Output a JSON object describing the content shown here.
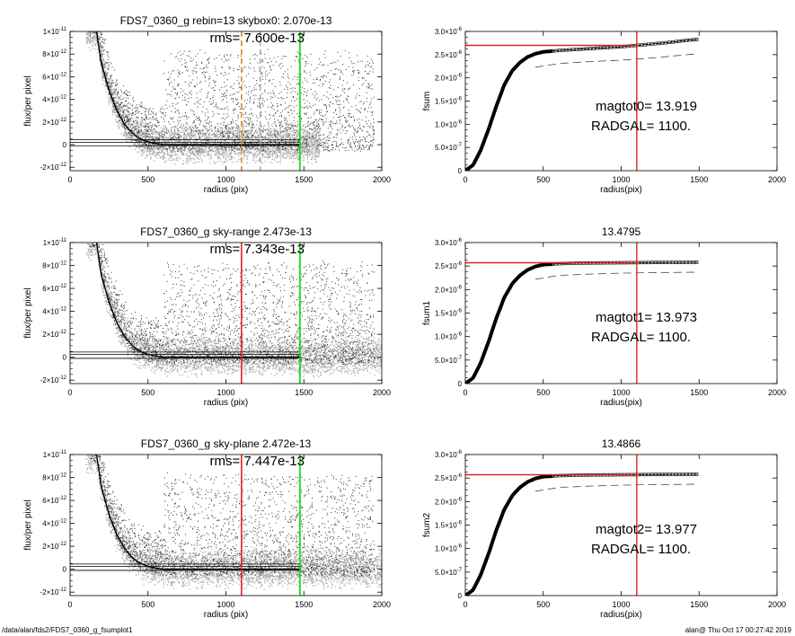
{
  "chart_data": [
    {
      "type": "scatter",
      "title": "FDS7_0360_g rebin=13    skybox0:  2.070e-13",
      "annotations": [
        "rms= 7.600e-13"
      ],
      "xlabel": "radius (pix)",
      "ylabel": "flux/per pixel",
      "xlim": [
        0,
        2000
      ],
      "ylim": [
        -2.3e-12,
        1e-11
      ],
      "xticks": [
        "0",
        "500",
        "1000",
        "1500",
        "2000"
      ],
      "yticks": [
        {
          "base": "1×10",
          "exp": "-11",
          "value": 1e-11
        },
        {
          "base": "8×10",
          "exp": "-12",
          "value": 8e-12
        },
        {
          "base": "6×10",
          "exp": "-12",
          "value": 6e-12
        },
        {
          "base": "4×10",
          "exp": "-12",
          "value": 4e-12
        },
        {
          "base": "2×10",
          "exp": "-12",
          "value": 2e-12
        },
        {
          "base": "0",
          "exp": "",
          "value": 0
        },
        {
          "base": "-2×10",
          "exp": "-12",
          "value": -2e-12
        }
      ],
      "vlines": [
        {
          "x": 1100,
          "color": "#e08a1e",
          "style": "dashed"
        },
        {
          "x": 1220,
          "color": "#aaaaaa",
          "style": "dashed"
        },
        {
          "x": 1475,
          "color": "#00dd00",
          "style": "solid"
        }
      ],
      "hlines": [
        2.07e-13,
        -1e-13,
        4.5e-13
      ],
      "profile": [
        [
          170,
          1e-11
        ],
        [
          200,
          7.2e-12
        ],
        [
          250,
          4.8e-12
        ],
        [
          300,
          3e-12
        ],
        [
          350,
          1.8e-12
        ],
        [
          400,
          1e-12
        ],
        [
          450,
          5e-13
        ],
        [
          500,
          2.5e-13
        ],
        [
          550,
          1e-13
        ],
        [
          600,
          0
        ]
      ],
      "scatter_xmax": 1600,
      "errorbars": true
    },
    {
      "type": "line",
      "title": "",
      "annotations": [
        "magtot0=  13.919",
        "RADGAL=   1100."
      ],
      "xlabel": "radius(pix)",
      "ylabel": "fsum",
      "xlim": [
        0,
        2000
      ],
      "ylim": [
        0,
        3e-06
      ],
      "xticks": [
        "0",
        "500",
        "1000",
        "1500",
        "2000"
      ],
      "yticks": [
        {
          "base": "3.0×10",
          "exp": "-6",
          "value": 3e-06
        },
        {
          "base": "2.5×10",
          "exp": "-6",
          "value": 2.5e-06
        },
        {
          "base": "2.0×10",
          "exp": "-6",
          "value": 2e-06
        },
        {
          "base": "1.5×10",
          "exp": "-6",
          "value": 1.5e-06
        },
        {
          "base": "1.0×10",
          "exp": "-6",
          "value": 1e-06
        },
        {
          "base": "5.0×10",
          "exp": "-7",
          "value": 5e-07
        },
        {
          "base": "0",
          "exp": "",
          "value": 0
        }
      ],
      "vline_x": 1100,
      "hline_y": 2.7e-06,
      "curve": [
        [
          0,
          0
        ],
        [
          50,
          1.2e-07
        ],
        [
          100,
          4.5e-07
        ],
        [
          150,
          9e-07
        ],
        [
          200,
          1.4e-06
        ],
        [
          250,
          1.85e-06
        ],
        [
          300,
          2.15e-06
        ],
        [
          350,
          2.33e-06
        ],
        [
          400,
          2.45e-06
        ],
        [
          450,
          2.52e-06
        ],
        [
          500,
          2.56e-06
        ],
        [
          600,
          2.59e-06
        ],
        [
          700,
          2.61e-06
        ],
        [
          800,
          2.63e-06
        ],
        [
          900,
          2.65e-06
        ],
        [
          1000,
          2.67e-06
        ],
        [
          1100,
          2.7e-06
        ],
        [
          1200,
          2.73e-06
        ],
        [
          1300,
          2.76e-06
        ],
        [
          1400,
          2.8e-06
        ],
        [
          1490,
          2.83e-06
        ]
      ],
      "dashed": [
        [
          450,
          2.23e-06
        ],
        [
          600,
          2.31e-06
        ],
        [
          800,
          2.35e-06
        ],
        [
          1000,
          2.38e-06
        ],
        [
          1200,
          2.43e-06
        ],
        [
          1490,
          2.52e-06
        ]
      ]
    },
    {
      "type": "scatter",
      "title": "FDS7_0360_g sky-range  2.473e-13",
      "annotations": [
        "rms= 7.343e-13"
      ],
      "xlabel": "radius (pix)",
      "ylabel": "flux/per pixel",
      "xlim": [
        0,
        2000
      ],
      "ylim": [
        -2.3e-12,
        1e-11
      ],
      "xticks": [
        "0",
        "500",
        "1000",
        "1500",
        "2000"
      ],
      "yticks": [
        {
          "base": "1×10",
          "exp": "-11",
          "value": 1e-11
        },
        {
          "base": "8×10",
          "exp": "-12",
          "value": 8e-12
        },
        {
          "base": "6×10",
          "exp": "-12",
          "value": 6e-12
        },
        {
          "base": "4×10",
          "exp": "-12",
          "value": 4e-12
        },
        {
          "base": "2×10",
          "exp": "-12",
          "value": 2e-12
        },
        {
          "base": "0",
          "exp": "",
          "value": 0
        },
        {
          "base": "-2×10",
          "exp": "-12",
          "value": -2e-12
        }
      ],
      "vlines": [
        {
          "x": 1100,
          "color": "#dd2222",
          "style": "solid"
        },
        {
          "x": 1475,
          "color": "#00dd00",
          "style": "solid"
        }
      ],
      "hlines": [
        2.473e-13,
        -1e-13,
        4.5e-13
      ],
      "profile": [
        [
          170,
          1e-11
        ],
        [
          200,
          7.2e-12
        ],
        [
          250,
          4.8e-12
        ],
        [
          300,
          3e-12
        ],
        [
          350,
          1.8e-12
        ],
        [
          400,
          1e-12
        ],
        [
          450,
          5e-13
        ],
        [
          500,
          2.5e-13
        ],
        [
          550,
          1e-13
        ],
        [
          600,
          0
        ]
      ],
      "scatter_xmax": 2000,
      "errorbars": false
    },
    {
      "type": "line",
      "title": "13.4795",
      "annotations": [
        "magtot1=  13.973",
        "RADGAL=   1100."
      ],
      "xlabel": "radius(pix)",
      "ylabel": "fsum1",
      "xlim": [
        0,
        2000
      ],
      "ylim": [
        0,
        3e-06
      ],
      "xticks": [
        "0",
        "500",
        "1000",
        "1500",
        "2000"
      ],
      "yticks": [
        {
          "base": "3.0×10",
          "exp": "-6",
          "value": 3e-06
        },
        {
          "base": "2.5×10",
          "exp": "-6",
          "value": 2.5e-06
        },
        {
          "base": "2.0×10",
          "exp": "-6",
          "value": 2e-06
        },
        {
          "base": "1.5×10",
          "exp": "-6",
          "value": 1.5e-06
        },
        {
          "base": "1.0×10",
          "exp": "-6",
          "value": 1e-06
        },
        {
          "base": "5.0×10",
          "exp": "-7",
          "value": 5e-07
        },
        {
          "base": "0",
          "exp": "",
          "value": 0
        }
      ],
      "vline_x": 1100,
      "hline_y": 2.57e-06,
      "curve": [
        [
          0,
          0
        ],
        [
          50,
          1.2e-07
        ],
        [
          100,
          4.5e-07
        ],
        [
          150,
          9e-07
        ],
        [
          200,
          1.4e-06
        ],
        [
          250,
          1.83e-06
        ],
        [
          300,
          2.12e-06
        ],
        [
          350,
          2.3e-06
        ],
        [
          400,
          2.42e-06
        ],
        [
          450,
          2.49e-06
        ],
        [
          500,
          2.53e-06
        ],
        [
          600,
          2.55e-06
        ],
        [
          700,
          2.56e-06
        ],
        [
          800,
          2.565e-06
        ],
        [
          1000,
          2.57e-06
        ],
        [
          1200,
          2.575e-06
        ],
        [
          1490,
          2.58e-06
        ]
      ],
      "dashed": [
        [
          450,
          2.22e-06
        ],
        [
          600,
          2.3e-06
        ],
        [
          800,
          2.33e-06
        ],
        [
          1000,
          2.35e-06
        ],
        [
          1200,
          2.36e-06
        ],
        [
          1490,
          2.37e-06
        ]
      ]
    },
    {
      "type": "scatter",
      "title": "FDS7_0360_g sky-plane  2.472e-13",
      "annotations": [
        "rms= 7.447e-13"
      ],
      "xlabel": "radius (pix)",
      "ylabel": "flux/per pixel",
      "xlim": [
        0,
        2000
      ],
      "ylim": [
        -2.3e-12,
        1e-11
      ],
      "xticks": [
        "0",
        "500",
        "1000",
        "1500",
        "2000"
      ],
      "yticks": [
        {
          "base": "1×10",
          "exp": "-11",
          "value": 1e-11
        },
        {
          "base": "8×10",
          "exp": "-12",
          "value": 8e-12
        },
        {
          "base": "6×10",
          "exp": "-12",
          "value": 6e-12
        },
        {
          "base": "4×10",
          "exp": "-12",
          "value": 4e-12
        },
        {
          "base": "2×10",
          "exp": "-12",
          "value": 2e-12
        },
        {
          "base": "0",
          "exp": "",
          "value": 0
        },
        {
          "base": "-2×10",
          "exp": "-12",
          "value": -2e-12
        }
      ],
      "vlines": [
        {
          "x": 1100,
          "color": "#dd2222",
          "style": "solid"
        },
        {
          "x": 1475,
          "color": "#00dd00",
          "style": "solid"
        }
      ],
      "hlines": [
        2.472e-13,
        -1e-13,
        4.5e-13
      ],
      "profile": [
        [
          170,
          1e-11
        ],
        [
          200,
          7.2e-12
        ],
        [
          250,
          4.8e-12
        ],
        [
          300,
          3e-12
        ],
        [
          350,
          1.8e-12
        ],
        [
          400,
          1e-12
        ],
        [
          450,
          5e-13
        ],
        [
          500,
          2.5e-13
        ],
        [
          550,
          1e-13
        ],
        [
          600,
          0
        ]
      ],
      "scatter_xmax": 2000,
      "errorbars": false
    },
    {
      "type": "line",
      "title": "13.4866",
      "annotations": [
        "magtot2=  13.977",
        "RADGAL=   1100."
      ],
      "xlabel": "radius(pix)",
      "ylabel": "fsum2",
      "xlim": [
        0,
        2000
      ],
      "ylim": [
        0,
        3e-06
      ],
      "xticks": [
        "0",
        "500",
        "1000",
        "1500",
        "2000"
      ],
      "yticks": [
        {
          "base": "3.0×10",
          "exp": "-6",
          "value": 3e-06
        },
        {
          "base": "2.5×10",
          "exp": "-6",
          "value": 2.5e-06
        },
        {
          "base": "2.0×10",
          "exp": "-6",
          "value": 2e-06
        },
        {
          "base": "1.5×10",
          "exp": "-6",
          "value": 1.5e-06
        },
        {
          "base": "1.0×10",
          "exp": "-6",
          "value": 1e-06
        },
        {
          "base": "5.0×10",
          "exp": "-7",
          "value": 5e-07
        },
        {
          "base": "0",
          "exp": "",
          "value": 0
        }
      ],
      "vline_x": 1100,
      "hline_y": 2.57e-06,
      "curve": [
        [
          0,
          0
        ],
        [
          50,
          1.2e-07
        ],
        [
          100,
          4.5e-07
        ],
        [
          150,
          9e-07
        ],
        [
          200,
          1.4e-06
        ],
        [
          250,
          1.83e-06
        ],
        [
          300,
          2.12e-06
        ],
        [
          350,
          2.3e-06
        ],
        [
          400,
          2.42e-06
        ],
        [
          450,
          2.49e-06
        ],
        [
          500,
          2.53e-06
        ],
        [
          600,
          2.55e-06
        ],
        [
          700,
          2.56e-06
        ],
        [
          800,
          2.565e-06
        ],
        [
          1000,
          2.57e-06
        ],
        [
          1200,
          2.575e-06
        ],
        [
          1490,
          2.58e-06
        ]
      ],
      "dashed": [
        [
          450,
          2.22e-06
        ],
        [
          600,
          2.3e-06
        ],
        [
          800,
          2.33e-06
        ],
        [
          1000,
          2.35e-06
        ],
        [
          1200,
          2.36e-06
        ],
        [
          1490,
          2.37e-06
        ]
      ]
    }
  ],
  "footer": {
    "left": "/data/alan/fds2/FDS7_0360_g_fsumplot1",
    "right": "alan@  Thu Oct 17 00:27:42 2019"
  },
  "colors": {
    "red": "#dd2222",
    "green": "#00dd00",
    "orange": "#e08a1e",
    "scatter_dark": "#333333",
    "scatter_light": "#a8a8a8"
  }
}
